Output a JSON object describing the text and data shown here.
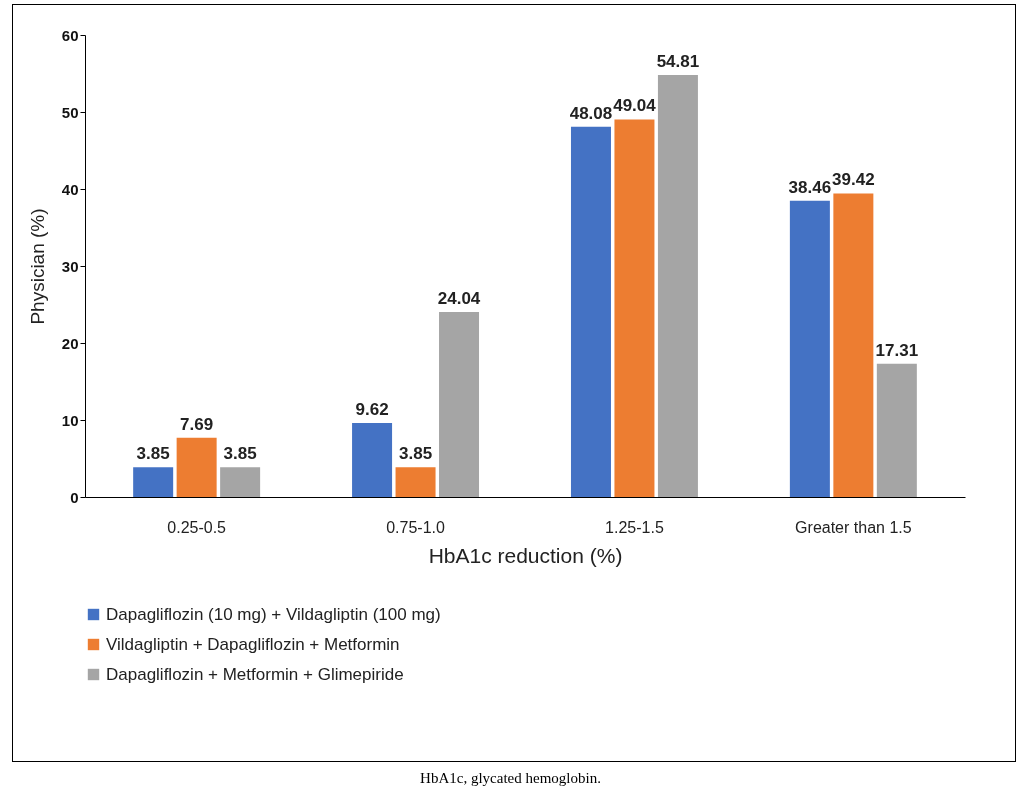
{
  "chart_data": {
    "type": "bar",
    "xlabel": "HbA1c reduction (%)",
    "ylabel": "Physician (%)",
    "categories": [
      "0.25-0.5",
      "0.75-1.0",
      "1.25-1.5",
      "Greater than 1.5"
    ],
    "series": [
      {
        "name": "Dapagliflozin (10 mg) + Vildagliptin (100 mg)",
        "color": "#4472c4",
        "values": [
          3.85,
          9.62,
          48.08,
          38.46
        ]
      },
      {
        "name": "Vildagliptin + Dapagliflozin + Metformin",
        "color": "#ed7d31",
        "values": [
          7.69,
          3.85,
          49.04,
          39.42
        ]
      },
      {
        "name": "Dapagliflozin + Metformin + Glimepiride",
        "color": "#a5a5a5",
        "values": [
          3.85,
          24.04,
          54.81,
          17.31
        ]
      }
    ],
    "ylim": [
      0,
      60
    ],
    "yticks": [
      0,
      10,
      20,
      30,
      40,
      50,
      60
    ],
    "grid": false,
    "legend": "bottom",
    "data_labels": true,
    "annotations": [
      "HbA1c, glycated hemoglobin."
    ]
  }
}
